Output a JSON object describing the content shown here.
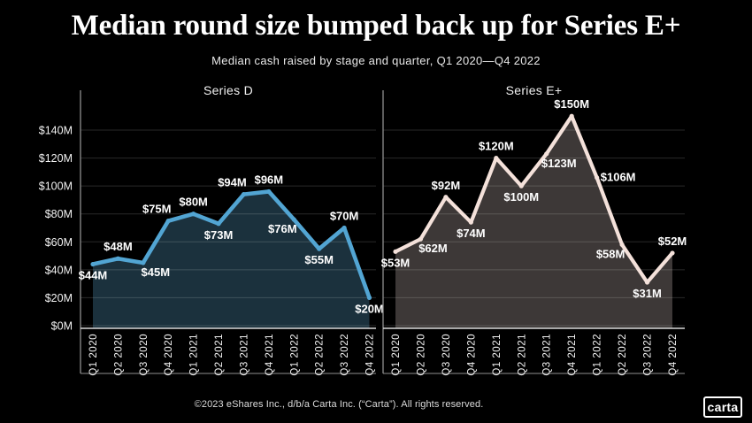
{
  "header": {
    "title": "Median round size bumped back up for Series E+",
    "subtitle": "Median cash raised by stage and quarter, Q1 2020—Q4 2022"
  },
  "footer": {
    "copyright": "©2023 eShares Inc., d/b/a Carta Inc. (“Carta”). All rights reserved.",
    "logo_text": "carta"
  },
  "colors": {
    "background": "#000000",
    "text": "#ffffff",
    "gridline": "rgba(255,255,255,0.16)",
    "axis_line": "#8f8f8f",
    "baseline": "#d9d9d9",
    "series_d_line": "#52a5d3",
    "series_d_fill": "#1b313d",
    "series_e_line": "#f4e1da",
    "series_e_fill": "#3d3837"
  },
  "chart_data": {
    "type": "area",
    "title": "Median round size bumped back up for Series E+",
    "subtitle": "Median cash raised by stage and quarter, Q1 2020—Q4 2022",
    "categories": [
      "Q1 2020",
      "Q2 2020",
      "Q3 2020",
      "Q4 2020",
      "Q1 2021",
      "Q2 2021",
      "Q3 2021",
      "Q4 2021",
      "Q1 2022",
      "Q2 2022",
      "Q3 2022",
      "Q4 2022"
    ],
    "y_axis": {
      "tick_values": [
        0,
        20,
        40,
        60,
        80,
        100,
        120,
        140
      ],
      "tick_labels": [
        "$0M",
        "$20M",
        "$40M",
        "$60M",
        "$80M",
        "$100M",
        "$120M",
        "$140M"
      ],
      "ylim": [
        0,
        160
      ],
      "unit": "$M"
    },
    "grid": true,
    "legend_position": "panel-titles",
    "series": [
      {
        "name": "Series D",
        "values": [
          44,
          48,
          45,
          75,
          80,
          73,
          94,
          96,
          76,
          55,
          70,
          20
        ],
        "point_labels": [
          "$44M",
          "$48M",
          "$45M",
          "$75M",
          "$80M",
          "$73M",
          "$94M",
          "$96M",
          "$76M",
          "$55M",
          "$70M",
          "$20M"
        ],
        "label_pos": [
          "below",
          "above",
          "below-right",
          "above-left",
          "above",
          "below",
          "above-left",
          "above",
          "below-left",
          "below",
          "above",
          "below"
        ],
        "line_color": "#52a5d3",
        "fill_color": "#1b313d",
        "show_y_labels": true
      },
      {
        "name": "Series E+",
        "values": [
          53,
          62,
          92,
          74,
          120,
          100,
          123,
          150,
          106,
          58,
          31,
          52
        ],
        "point_labels": [
          "$53M",
          "$62M",
          "$92M",
          "$74M",
          "$120M",
          "$100M",
          "$123M",
          "$150M",
          "$106M",
          "$58M",
          "$31M",
          "$52M"
        ],
        "label_pos": [
          "below",
          "below-right",
          "above",
          "below",
          "above",
          "below",
          "below-right",
          "above",
          "right",
          "below-left",
          "below",
          "above"
        ],
        "line_color": "#f4e1da",
        "fill_color": "#3d3837",
        "show_y_labels": false
      }
    ]
  }
}
